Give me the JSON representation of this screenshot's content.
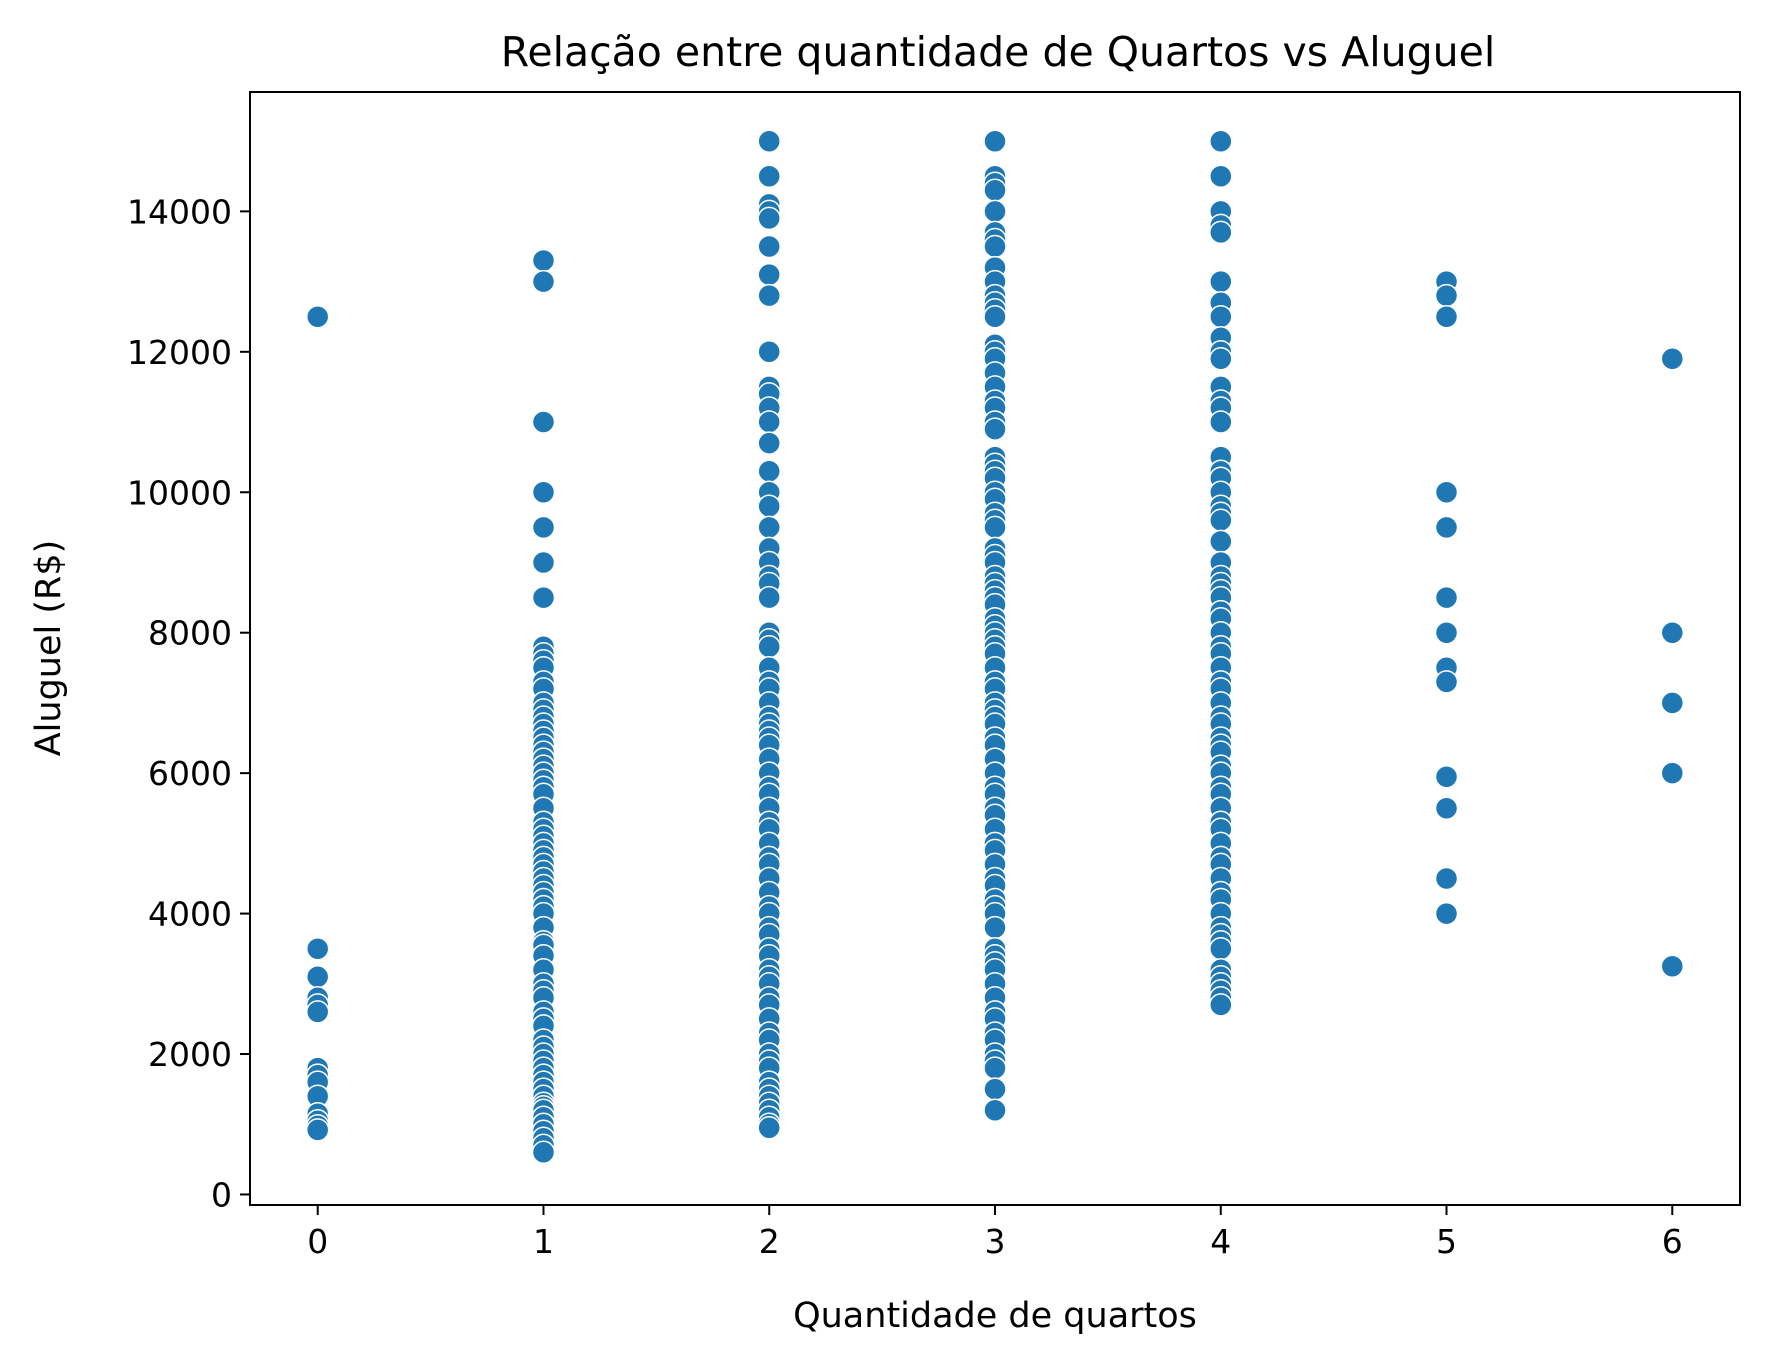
{
  "colors": {
    "point": "#1f77b4",
    "background": "#ffffff",
    "axis": "#000000"
  },
  "chart_data": {
    "type": "scatter",
    "title": "Relação entre quantidade de Quartos vs Aluguel",
    "xlabel": "Quantidade de quartos",
    "ylabel": "Aluguel (R$)",
    "xlim": [
      -0.3,
      6.3
    ],
    "ylim": [
      -150,
      15700
    ],
    "xticks": [
      0,
      1,
      2,
      3,
      4,
      5,
      6
    ],
    "yticks": [
      0,
      2000,
      4000,
      6000,
      8000,
      10000,
      12000,
      14000
    ],
    "grid": false,
    "legend": "none",
    "series": [
      {
        "x": 0,
        "y": [
          12500,
          3500,
          3100,
          2800,
          2700,
          2600,
          1800,
          1700,
          1600,
          1400,
          1150,
          1050,
          980,
          920
        ]
      },
      {
        "x": 1,
        "y": [
          13300,
          13000,
          11000,
          10000,
          9500,
          9000,
          8500,
          7800,
          7700,
          7600,
          7500,
          7300,
          7200,
          7000,
          6900,
          6800,
          6700,
          6600,
          6500,
          6400,
          6300,
          6200,
          6100,
          6000,
          5900,
          5800,
          5700,
          5500,
          5300,
          5200,
          5100,
          5000,
          4900,
          4800,
          4700,
          4600,
          4500,
          4400,
          4300,
          4200,
          4100,
          4000,
          3800,
          3600,
          3550,
          3400,
          3200,
          3000,
          2900,
          2800,
          2600,
          2500,
          2400,
          2200,
          2100,
          2000,
          1900,
          1800,
          1700,
          1600,
          1500,
          1400,
          1300,
          1250,
          1200,
          1100,
          1000,
          900,
          800,
          700,
          600
        ]
      },
      {
        "x": 2,
        "y": [
          15000,
          14500,
          14100,
          14000,
          13900,
          13500,
          13100,
          12800,
          12000,
          11500,
          11400,
          11200,
          11000,
          10700,
          10300,
          10000,
          9800,
          9500,
          9200,
          9000,
          8800,
          8700,
          8500,
          8000,
          7900,
          7800,
          7500,
          7300,
          7200,
          7000,
          6800,
          6700,
          6600,
          6500,
          6400,
          6200,
          6000,
          5800,
          5700,
          5500,
          5300,
          5200,
          5000,
          4800,
          4700,
          4500,
          4300,
          4100,
          4000,
          3800,
          3700,
          3500,
          3400,
          3200,
          3100,
          3000,
          2800,
          2700,
          2500,
          2300,
          2200,
          2000,
          1900,
          1800,
          1600,
          1500,
          1400,
          1300,
          1200,
          1100,
          1000,
          950
        ]
      },
      {
        "x": 3,
        "y": [
          15000,
          14500,
          14400,
          14300,
          14000,
          13700,
          13600,
          13500,
          13200,
          13000,
          12800,
          12700,
          12600,
          12500,
          12100,
          12000,
          11900,
          11700,
          11500,
          11300,
          11200,
          11000,
          10900,
          10500,
          10400,
          10300,
          10200,
          10000,
          9900,
          9700,
          9600,
          9500,
          9200,
          9100,
          9000,
          8800,
          8700,
          8600,
          8500,
          8400,
          8200,
          8100,
          8000,
          7900,
          7800,
          7700,
          7500,
          7300,
          7200,
          7000,
          6900,
          6800,
          6700,
          6500,
          6400,
          6200,
          6000,
          5800,
          5700,
          5500,
          5400,
          5200,
          5000,
          4900,
          4700,
          4500,
          4400,
          4200,
          4100,
          4000,
          3800,
          3500,
          3400,
          3300,
          3200,
          3000,
          2800,
          2600,
          2500,
          2300,
          2200,
          2000,
          1900,
          1800,
          1500,
          1200
        ]
      },
      {
        "x": 4,
        "y": [
          15000,
          14500,
          14000,
          13800,
          13700,
          13000,
          12700,
          12500,
          12200,
          12000,
          11900,
          11500,
          11300,
          11200,
          11000,
          10500,
          10300,
          10200,
          10000,
          9800,
          9700,
          9600,
          9300,
          9000,
          8800,
          8700,
          8600,
          8500,
          8300,
          8200,
          8000,
          7800,
          7700,
          7500,
          7300,
          7200,
          7000,
          6800,
          6700,
          6500,
          6400,
          6300,
          6100,
          6000,
          5800,
          5700,
          5500,
          5300,
          5200,
          5000,
          4800,
          4700,
          4500,
          4300,
          4200,
          4000,
          3800,
          3700,
          3600,
          3500,
          3200,
          3100,
          3000,
          2900,
          2800,
          2700
        ]
      },
      {
        "x": 5,
        "y": [
          13000,
          12800,
          12500,
          10000,
          9500,
          8500,
          8000,
          7500,
          7300,
          5950,
          5500,
          4500,
          4000
        ]
      },
      {
        "x": 6,
        "y": [
          11900,
          8000,
          7000,
          6000,
          3250
        ]
      }
    ]
  }
}
